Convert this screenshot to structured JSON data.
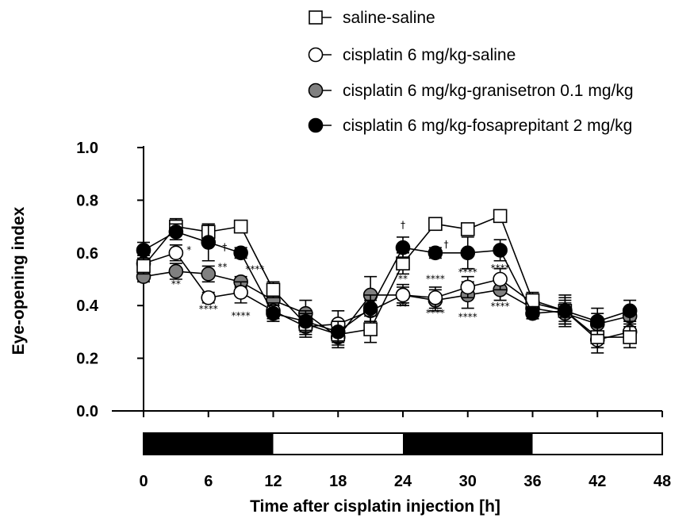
{
  "chart_data": {
    "type": "line",
    "xlabel": "Time after cisplatin injection [h]",
    "ylabel": "Eye-opening index",
    "xlim": [
      0,
      48
    ],
    "ylim": [
      0,
      1.0
    ],
    "x_ticks": [
      "0",
      "6",
      "12",
      "18",
      "24",
      "30",
      "36",
      "42",
      "48"
    ],
    "y_ticks": [
      "0.0",
      "0.2",
      "0.4",
      "0.6",
      "0.8",
      "1.0"
    ],
    "legend_position": "top-right",
    "light_dark_bar": [
      {
        "from": 0,
        "to": 12,
        "phase": "dark"
      },
      {
        "from": 12,
        "to": 24,
        "phase": "light"
      },
      {
        "from": 24,
        "to": 36,
        "phase": "dark"
      },
      {
        "from": 36,
        "to": 48,
        "phase": "light"
      }
    ],
    "x": [
      0,
      3,
      6,
      9,
      12,
      15,
      18,
      21,
      24,
      27,
      30,
      33,
      36,
      39,
      42,
      45
    ],
    "series": [
      {
        "name": "saline-saline",
        "marker": "square-open",
        "values": [
          0.55,
          0.7,
          0.68,
          0.7,
          0.46,
          0.33,
          0.29,
          0.31,
          0.56,
          0.71,
          0.69,
          0.74,
          0.42,
          0.38,
          0.28,
          0.28
        ],
        "errors": [
          0.03,
          0.03,
          0.03,
          0.02,
          0.03,
          0.04,
          0.05,
          0.05,
          0.04,
          0.02,
          0.02,
          0.02,
          0.03,
          0.04,
          0.04,
          0.04
        ]
      },
      {
        "name": "cisplatin 6 mg/kg-saline",
        "marker": "circle-open",
        "values": [
          0.56,
          0.6,
          0.43,
          0.45,
          0.38,
          0.32,
          0.33,
          0.38,
          0.44,
          0.43,
          0.47,
          0.5,
          0.41,
          0.38,
          0.27,
          0.3
        ],
        "errors": [
          0.03,
          0.03,
          0.02,
          0.04,
          0.03,
          0.04,
          0.05,
          0.04,
          0.03,
          0.04,
          0.04,
          0.04,
          0.03,
          0.06,
          0.05,
          0.04
        ]
      },
      {
        "name": "cisplatin 6 mg/kg-granisetron 0.1 mg/kg",
        "marker": "circle-gray",
        "values": [
          0.51,
          0.53,
          0.52,
          0.49,
          0.42,
          0.37,
          0.28,
          0.44,
          0.44,
          0.42,
          0.44,
          0.46,
          0.39,
          0.37,
          0.33,
          0.36
        ],
        "errors": [
          0.02,
          0.03,
          0.03,
          0.02,
          0.04,
          0.05,
          0.03,
          0.07,
          0.04,
          0.04,
          0.05,
          0.04,
          0.04,
          0.04,
          0.04,
          0.03
        ]
      },
      {
        "name": "cisplatin 6 mg/kg-fosaprepitant 2 mg/kg",
        "marker": "circle-filled",
        "values": [
          0.61,
          0.68,
          0.64,
          0.6,
          0.37,
          0.34,
          0.3,
          0.39,
          0.62,
          0.6,
          0.6,
          0.61,
          0.37,
          0.38,
          0.34,
          0.38
        ],
        "errors": [
          0.03,
          0.03,
          0.07,
          0.02,
          0.03,
          0.04,
          0.04,
          0.05,
          0.04,
          0.02,
          0.06,
          0.04,
          0.02,
          0.05,
          0.05,
          0.04
        ]
      }
    ],
    "annotations": [
      {
        "text": "*",
        "x": 4.2,
        "y": 0.6
      },
      {
        "text": "**",
        "x": 3.0,
        "y": 0.47
      },
      {
        "text": "†",
        "x": 7.5,
        "y": 0.61
      },
      {
        "text": "**",
        "x": 7.3,
        "y": 0.535
      },
      {
        "text": "****",
        "x": 10.3,
        "y": 0.525
      },
      {
        "text": "****",
        "x": 6.0,
        "y": 0.375
      },
      {
        "text": "****",
        "x": 9.0,
        "y": 0.35
      },
      {
        "text": "†",
        "x": 24.0,
        "y": 0.695
      },
      {
        "text": "†",
        "x": 28.0,
        "y": 0.62
      },
      {
        "text": "**",
        "x": 24.0,
        "y": 0.49
      },
      {
        "text": "****",
        "x": 27.0,
        "y": 0.49
      },
      {
        "text": "****",
        "x": 30.0,
        "y": 0.515
      },
      {
        "text": "****",
        "x": 33.0,
        "y": 0.53
      },
      {
        "text": "**",
        "x": 24.0,
        "y": 0.385
      },
      {
        "text": "****",
        "x": 27.0,
        "y": 0.36
      },
      {
        "text": "****",
        "x": 30.0,
        "y": 0.345
      },
      {
        "text": "****",
        "x": 33.0,
        "y": 0.385
      }
    ]
  }
}
